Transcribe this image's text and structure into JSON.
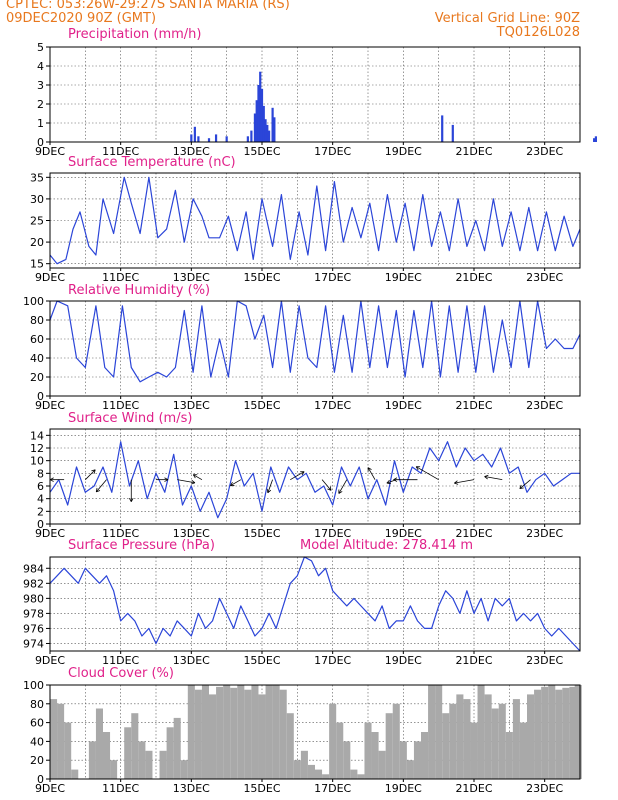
{
  "header": {
    "line1_left": "CPTEC:   053:26W-29:27S   SANTA MARIA (RS)",
    "line2_left": "09DEC2020 90Z (GMT)",
    "line1_right": "Vertical Grid Line: 90Z",
    "line2_right": "TQ0126L028"
  },
  "colors": {
    "header": "#e8781e",
    "title": "#e0218a",
    "line": "#2b45d8",
    "bars": "#2b45d8",
    "cloud": "#a9a9a9"
  },
  "chart_data": [
    {
      "type": "bar",
      "title": "Precipitation   (mm/h)",
      "ylim": [
        0,
        5
      ],
      "yticks": [
        0,
        1,
        2,
        3,
        4,
        5
      ],
      "xticks": [
        "9DEC",
        "11DEC",
        "13DEC",
        "15DEC",
        "17DEC",
        "19DEC",
        "21DEC",
        "23DEC"
      ],
      "x_unit": "days since 9DEC 90Z",
      "bars": [
        [
          4.0,
          0.4
        ],
        [
          4.1,
          0.8
        ],
        [
          4.2,
          0.3
        ],
        [
          4.5,
          0.2
        ],
        [
          4.7,
          0.4
        ],
        [
          5.0,
          0.3
        ],
        [
          5.6,
          0.3
        ],
        [
          5.7,
          0.6
        ],
        [
          5.8,
          1.5
        ],
        [
          5.85,
          2.2
        ],
        [
          5.9,
          3.0
        ],
        [
          5.95,
          3.7
        ],
        [
          6.0,
          2.8
        ],
        [
          6.05,
          1.9
        ],
        [
          6.1,
          1.2
        ],
        [
          6.15,
          0.9
        ],
        [
          6.2,
          0.6
        ],
        [
          6.3,
          1.8
        ],
        [
          6.35,
          1.3
        ],
        [
          11.1,
          1.4
        ],
        [
          11.4,
          0.9
        ],
        [
          15.4,
          0.2
        ],
        [
          15.45,
          0.3
        ]
      ]
    },
    {
      "type": "line",
      "title": "Surface Temperature (nC)",
      "ylim": [
        14,
        36
      ],
      "yticks": [
        15,
        20,
        25,
        30,
        35
      ],
      "xticks": [
        "9DEC",
        "11DEC",
        "13DEC",
        "15DEC",
        "17DEC",
        "19DEC",
        "21DEC",
        "23DEC"
      ],
      "x": [
        0,
        0.2,
        0.45,
        0.65,
        0.85,
        1.1,
        1.3,
        1.5,
        1.8,
        2.1,
        2.3,
        2.55,
        2.8,
        3.05,
        3.3,
        3.55,
        3.8,
        4.05,
        4.3,
        4.5,
        4.8,
        5.05,
        5.3,
        5.55,
        5.75,
        6.0,
        6.3,
        6.55,
        6.8,
        7.05,
        7.3,
        7.55,
        7.8,
        8.05,
        8.3,
        8.55,
        8.8,
        9.05,
        9.3,
        9.55,
        9.8,
        10.05,
        10.3,
        10.55,
        10.8,
        11.05,
        11.3,
        11.55,
        11.8,
        12.05,
        12.3,
        12.55,
        12.8,
        13.05,
        13.3,
        13.55,
        13.8,
        14.05,
        14.3,
        14.55,
        14.8,
        15.0
      ],
      "y": [
        17,
        15,
        16,
        23,
        27,
        19,
        17,
        30,
        22,
        35,
        29,
        22,
        35,
        21,
        23,
        32,
        20,
        30,
        26,
        21,
        21,
        26,
        18,
        27,
        16,
        30,
        19,
        31,
        16,
        27,
        17,
        33,
        18,
        34,
        20,
        28,
        21,
        29,
        18,
        31,
        20,
        29,
        18,
        31,
        19,
        27,
        18,
        30,
        19,
        25,
        18,
        30,
        19,
        27,
        18,
        28,
        18,
        27,
        18,
        26,
        19,
        23
      ]
    },
    {
      "type": "line",
      "title": "Relative Humidity  (%)",
      "ylim": [
        0,
        100
      ],
      "yticks": [
        0,
        20,
        40,
        60,
        80,
        100
      ],
      "xticks": [
        "9DEC",
        "11DEC",
        "13DEC",
        "15DEC",
        "17DEC",
        "19DEC",
        "21DEC",
        "23DEC"
      ],
      "x": [
        0,
        0.2,
        0.5,
        0.75,
        1.0,
        1.3,
        1.55,
        1.8,
        2.05,
        2.3,
        2.55,
        2.8,
        3.05,
        3.3,
        3.55,
        3.8,
        4.05,
        4.3,
        4.55,
        4.8,
        5.05,
        5.3,
        5.55,
        5.8,
        6.05,
        6.3,
        6.55,
        6.8,
        7.05,
        7.3,
        7.55,
        7.8,
        8.05,
        8.3,
        8.55,
        8.8,
        9.05,
        9.3,
        9.55,
        9.8,
        10.05,
        10.3,
        10.55,
        10.8,
        11.05,
        11.3,
        11.55,
        11.8,
        12.05,
        12.3,
        12.55,
        12.8,
        13.05,
        13.3,
        13.55,
        13.8,
        14.05,
        14.3,
        14.55,
        14.8,
        15.0
      ],
      "y": [
        80,
        100,
        95,
        40,
        30,
        95,
        30,
        20,
        95,
        30,
        15,
        20,
        25,
        20,
        30,
        90,
        25,
        95,
        20,
        60,
        20,
        100,
        95,
        60,
        85,
        30,
        100,
        25,
        95,
        40,
        30,
        95,
        25,
        85,
        25,
        100,
        30,
        95,
        30,
        90,
        20,
        90,
        30,
        100,
        20,
        95,
        25,
        95,
        25,
        95,
        25,
        80,
        30,
        100,
        30,
        100,
        50,
        60,
        50,
        50,
        65
      ]
    },
    {
      "type": "line",
      "title": "Surface Wind (m/s)",
      "ylim": [
        0,
        15
      ],
      "yticks": [
        0,
        2,
        4,
        6,
        8,
        10,
        12,
        14
      ],
      "xticks": [
        "9DEC",
        "11DEC",
        "13DEC",
        "15DEC",
        "17DEC",
        "19DEC",
        "21DEC",
        "23DEC"
      ],
      "x": [
        0,
        0.25,
        0.5,
        0.75,
        1.0,
        1.25,
        1.5,
        1.75,
        2.0,
        2.25,
        2.5,
        2.75,
        3.0,
        3.25,
        3.5,
        3.75,
        4.0,
        4.25,
        4.5,
        4.75,
        5.0,
        5.25,
        5.5,
        5.75,
        6.0,
        6.25,
        6.5,
        6.75,
        7.0,
        7.25,
        7.5,
        7.75,
        8.0,
        8.25,
        8.5,
        8.75,
        9.0,
        9.25,
        9.5,
        9.75,
        10.0,
        10.25,
        10.5,
        10.75,
        11.0,
        11.25,
        11.5,
        11.75,
        12.0,
        12.25,
        12.5,
        12.75,
        13.0,
        13.25,
        13.5,
        13.75,
        14.0,
        14.25,
        14.5,
        14.75,
        15.0
      ],
      "y": [
        5,
        7,
        3,
        9,
        5,
        6,
        9,
        5,
        13,
        6,
        10,
        4,
        8,
        5,
        11,
        3,
        6,
        2,
        5,
        1,
        4,
        10,
        6,
        8,
        2,
        9,
        5,
        9,
        7,
        8,
        5,
        6,
        3,
        9,
        6,
        9,
        4,
        7,
        3,
        10,
        5,
        9,
        8,
        12,
        10,
        13,
        9,
        12,
        10,
        11,
        9,
        12,
        8,
        9,
        5,
        7,
        8,
        6,
        7,
        8,
        8
      ],
      "arrows_note": "wind direction vectors drawn along the series"
    },
    {
      "type": "line",
      "title": "Surface Pressure (hPa)",
      "subtitle": "Model Altitude: 278.414  m",
      "ylim": [
        973,
        985.5
      ],
      "yticks": [
        974,
        976,
        978,
        980,
        982,
        984
      ],
      "xticks": [
        "9DEC",
        "11DEC",
        "13DEC",
        "15DEC",
        "17DEC",
        "19DEC",
        "21DEC",
        "23DEC"
      ],
      "x": [
        0,
        0.2,
        0.4,
        0.6,
        0.8,
        1.0,
        1.2,
        1.4,
        1.6,
        1.8,
        2.0,
        2.2,
        2.4,
        2.6,
        2.8,
        3.0,
        3.2,
        3.4,
        3.6,
        3.8,
        4.0,
        4.2,
        4.4,
        4.6,
        4.8,
        5.0,
        5.2,
        5.4,
        5.6,
        5.8,
        6.0,
        6.2,
        6.4,
        6.6,
        6.8,
        7.0,
        7.2,
        7.4,
        7.6,
        7.8,
        8.0,
        8.2,
        8.4,
        8.6,
        8.8,
        9.0,
        9.2,
        9.4,
        9.6,
        9.8,
        10.0,
        10.2,
        10.4,
        10.6,
        10.8,
        11.0,
        11.2,
        11.4,
        11.6,
        11.8,
        12.0,
        12.2,
        12.4,
        12.6,
        12.8,
        13.0,
        13.2,
        13.4,
        13.6,
        13.8,
        14.0,
        14.2,
        14.4,
        14.6,
        14.8,
        15.0
      ],
      "y": [
        982,
        983,
        984,
        983,
        982,
        984,
        983,
        982,
        983,
        981,
        977,
        978,
        977,
        975,
        976,
        974,
        976,
        975,
        977,
        976,
        975,
        978,
        976,
        977,
        980,
        978,
        976,
        979,
        977,
        975,
        976,
        978,
        976,
        979,
        982,
        983,
        986,
        985,
        983,
        984,
        981,
        980,
        979,
        980,
        979,
        978,
        977,
        979,
        976,
        977,
        977,
        979,
        977,
        976,
        976,
        979,
        981,
        980,
        978,
        981,
        978,
        980,
        977,
        980,
        979,
        980,
        977,
        978,
        977,
        978,
        976,
        975,
        976,
        975,
        974,
        973
      ]
    },
    {
      "type": "bar",
      "title": "Cloud Cover  (%)",
      "ylim": [
        0,
        100
      ],
      "yticks": [
        0,
        20,
        40,
        60,
        80,
        100
      ],
      "xticks": [
        "9DEC",
        "11DEC",
        "13DEC",
        "15DEC",
        "17DEC",
        "19DEC",
        "21DEC",
        "23DEC"
      ],
      "x": [
        0.1,
        0.3,
        0.5,
        0.7,
        1.2,
        1.4,
        1.6,
        1.8,
        2.2,
        2.4,
        2.6,
        2.8,
        3.2,
        3.4,
        3.6,
        3.8,
        4.0,
        4.2,
        4.4,
        4.6,
        4.8,
        5.0,
        5.2,
        5.4,
        5.6,
        5.8,
        6.0,
        6.2,
        6.4,
        6.6,
        6.8,
        7.0,
        7.2,
        7.4,
        7.6,
        7.8,
        8.0,
        8.2,
        8.4,
        8.6,
        8.8,
        9.0,
        9.2,
        9.4,
        9.6,
        9.8,
        10.0,
        10.2,
        10.4,
        10.6,
        10.8,
        11.0,
        11.2,
        11.4,
        11.6,
        11.8,
        12.0,
        12.2,
        12.4,
        12.6,
        12.8,
        13.0,
        13.2,
        13.4,
        13.6,
        13.8,
        14.0,
        14.2,
        14.4,
        14.6,
        14.8,
        14.95
      ],
      "y": [
        85,
        80,
        60,
        10,
        40,
        75,
        50,
        20,
        55,
        70,
        40,
        30,
        30,
        55,
        65,
        20,
        100,
        95,
        100,
        90,
        98,
        100,
        97,
        100,
        95,
        100,
        90,
        100,
        100,
        95,
        70,
        20,
        30,
        15,
        10,
        5,
        80,
        60,
        40,
        10,
        5,
        60,
        50,
        30,
        70,
        80,
        40,
        20,
        40,
        50,
        100,
        100,
        70,
        80,
        90,
        85,
        60,
        100,
        90,
        75,
        80,
        50,
        85,
        60,
        90,
        95,
        98,
        100,
        95,
        97,
        98,
        100
      ]
    }
  ]
}
